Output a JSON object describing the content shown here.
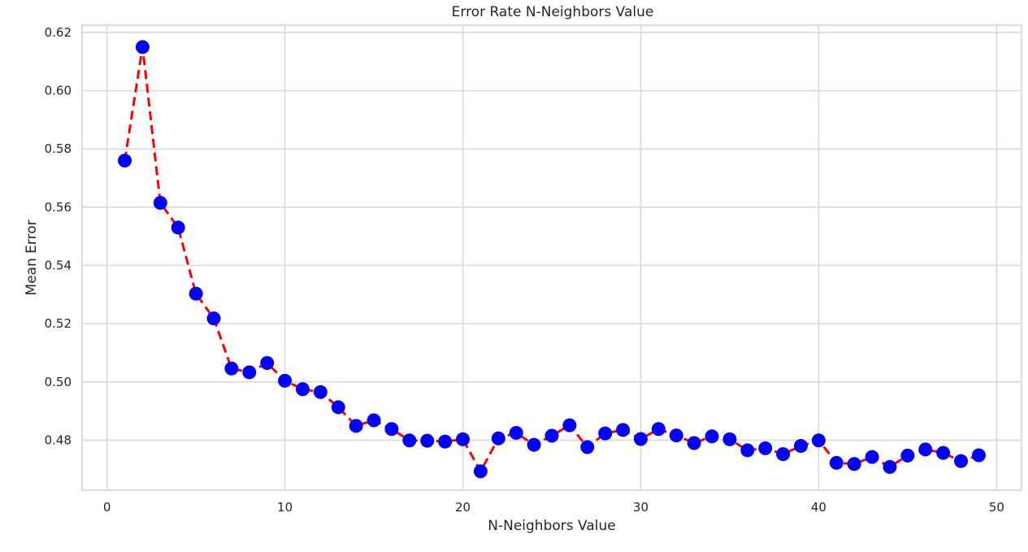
{
  "chart_data": {
    "type": "line",
    "title": "Error Rate N-Neighbors Value",
    "xlabel": "N-Neighbors Value",
    "ylabel": "Mean Error",
    "xlim": [
      -1.4,
      51.4
    ],
    "ylim": [
      0.4628,
      0.6225
    ],
    "x_ticks": [
      0,
      10,
      20,
      30,
      40,
      50
    ],
    "x_tick_labels": [
      "0",
      "10",
      "20",
      "30",
      "40",
      "50"
    ],
    "y_ticks": [
      0.48,
      0.5,
      0.52,
      0.54,
      0.56,
      0.58,
      0.6,
      0.62
    ],
    "y_tick_labels": [
      "0.48",
      "0.50",
      "0.52",
      "0.54",
      "0.56",
      "0.58",
      "0.60",
      "0.62"
    ],
    "grid": true,
    "line_color": "#ff0000",
    "line_style": "dashed",
    "marker_color": "#0000ff",
    "series": [
      {
        "x": [
          1,
          2,
          3,
          4,
          5,
          6,
          7,
          8,
          9,
          10,
          11,
          12,
          13,
          14,
          15,
          16,
          17,
          18,
          19,
          20,
          21,
          22,
          23,
          24,
          25,
          26,
          27,
          28,
          29,
          30,
          31,
          32,
          33,
          34,
          35,
          36,
          37,
          38,
          39,
          40,
          41,
          42,
          43,
          44,
          45,
          46,
          47,
          48,
          49
        ],
        "values": [
          0.576,
          0.615,
          0.5615,
          0.553,
          0.5303,
          0.5218,
          0.5046,
          0.5033,
          0.5065,
          0.5004,
          0.4975,
          0.4965,
          0.4913,
          0.4849,
          0.4868,
          0.4838,
          0.4799,
          0.4798,
          0.4795,
          0.4803,
          0.4693,
          0.4806,
          0.4825,
          0.4784,
          0.4815,
          0.4851,
          0.4776,
          0.4823,
          0.4835,
          0.4804,
          0.4838,
          0.4816,
          0.479,
          0.4813,
          0.4803,
          0.4765,
          0.4772,
          0.4752,
          0.478,
          0.4799,
          0.4722,
          0.4718,
          0.4742,
          0.4708,
          0.4747,
          0.4768,
          0.4756,
          0.4728,
          0.4748
        ]
      }
    ]
  }
}
